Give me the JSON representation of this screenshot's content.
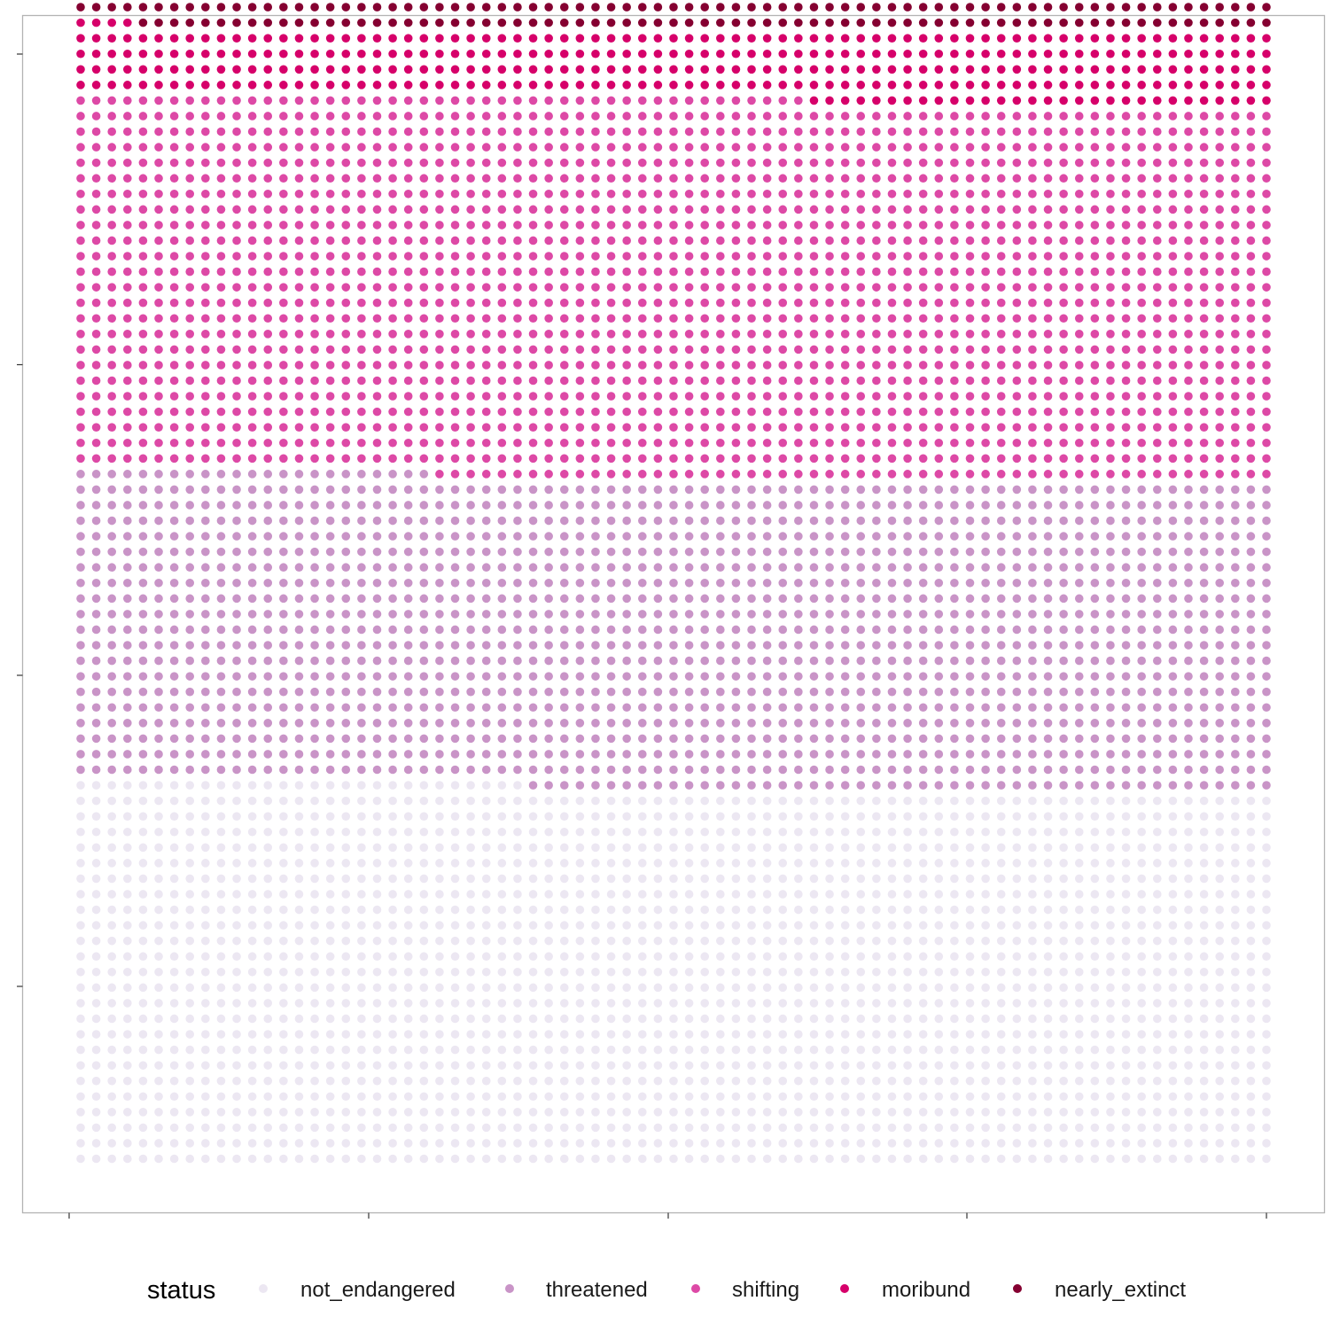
{
  "chart_data": {
    "type": "waffle",
    "title": "",
    "xlabel": "",
    "ylabel": "",
    "columns": 77,
    "rows": 71,
    "fill_order": "bottom-to-top, left-to-right",
    "legend": {
      "title": "status",
      "position": "bottom"
    },
    "categories": [
      "not_endangered",
      "threatened",
      "shifting",
      "moribund",
      "nearly_extinct"
    ],
    "values": [
      1877,
      1534,
      1872,
      342,
      283
    ],
    "colors": [
      "#ECE7F2",
      "#C994C7",
      "#DD49A6",
      "#D6006A",
      "#850031"
    ],
    "panel": {
      "border": "#b3b3b3",
      "background": "#ffffff",
      "grid": false
    }
  }
}
